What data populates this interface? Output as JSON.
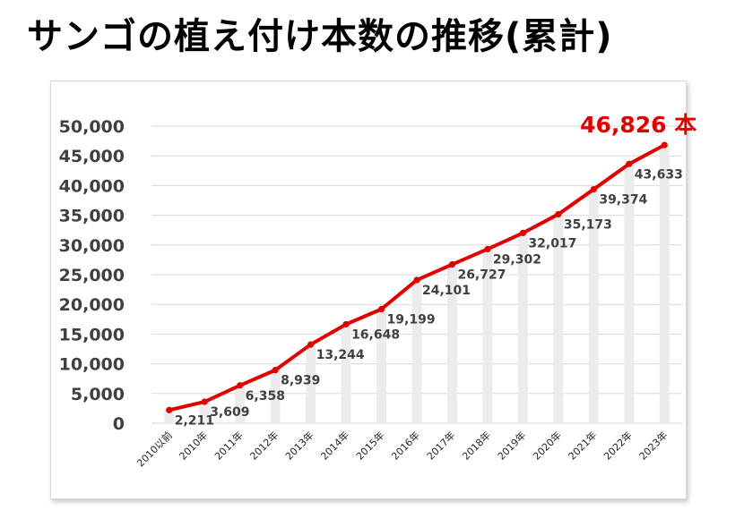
{
  "title": "サンゴの植え付け本数の推移(累計)",
  "colors": {
    "line": "#e00000",
    "bar": "#ececec",
    "grid": "#d9d9d9",
    "final_label": "#e00000"
  },
  "chart_data": {
    "type": "line",
    "title": "サンゴの植え付け本数の推移(累計)",
    "xlabel": "",
    "ylabel": "",
    "categories": [
      "2010以前",
      "2010年",
      "2011年",
      "2012年",
      "2013年",
      "2014年",
      "2015年",
      "2016年",
      "2017年",
      "2018年",
      "2019年",
      "2020年",
      "2021年",
      "2022年",
      "2023年"
    ],
    "series": [
      {
        "values": [
          2211,
          3609,
          6358,
          8939,
          13244,
          16648,
          19199,
          24101,
          26727,
          29302,
          32017,
          35173,
          39374,
          43633,
          46826
        ]
      }
    ],
    "data_labels": [
      "2,211",
      "3,609",
      "6,358",
      "8,939",
      "13,244",
      "16,648",
      "19,199",
      "24,101",
      "26,727",
      "29,302",
      "32,017",
      "35,173",
      "39,374",
      "43,633"
    ],
    "final_label": "46,826 本",
    "ylim": [
      0,
      50000
    ],
    "yticks": [
      0,
      5000,
      10000,
      15000,
      20000,
      25000,
      30000,
      35000,
      40000,
      45000,
      50000
    ],
    "ytick_labels": [
      "0",
      "5,000",
      "10,000",
      "15,000",
      "20,000",
      "25,000",
      "30,000",
      "35,000",
      "40,000",
      "45,000",
      "50,000"
    ],
    "grid": true,
    "background_bars": true
  }
}
